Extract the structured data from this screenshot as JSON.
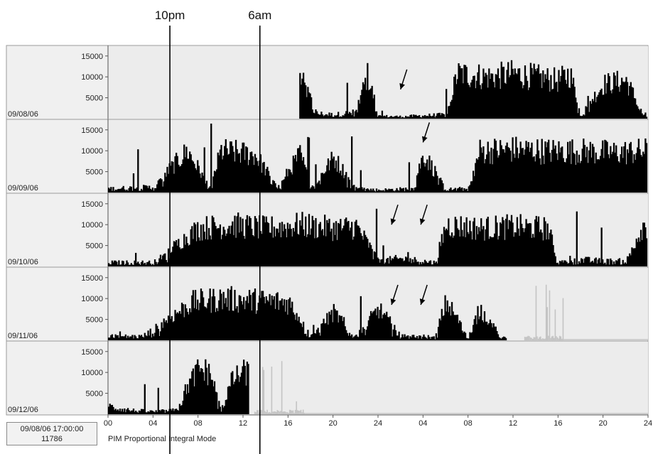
{
  "markers": [
    {
      "label": "10pm",
      "hour": 5.5
    },
    {
      "label": "6am",
      "hour": 13.5
    }
  ],
  "status_box": {
    "timestamp": "09/08/06 17:00:00",
    "value": "11786"
  },
  "mode_label": "PIM  Proportional Integral Mode",
  "chart_data": {
    "type": "bar",
    "title": "",
    "xlabel": "",
    "ylabel": "",
    "x_tick_labels": [
      "00",
      "04",
      "08",
      "12",
      "16",
      "20",
      "24",
      "04",
      "08",
      "12",
      "16",
      "20",
      "24"
    ],
    "x_range_hours": [
      0,
      48
    ],
    "ylim": [
      0,
      17000
    ],
    "y_tick_labels": [
      "15000",
      "10000",
      "5000"
    ],
    "colors": {
      "activity": "#000000",
      "off_wrist": "#c4c4c4",
      "background": "#ececec"
    },
    "panels": [
      {
        "date": "09/08/06",
        "activity": [
          [
            17,
            12000
          ],
          [
            18.5,
            2000
          ],
          [
            20,
            1500
          ],
          [
            22,
            2500
          ],
          [
            23,
            12500
          ],
          [
            24,
            1000
          ],
          [
            26,
            800
          ],
          [
            28,
            1200
          ],
          [
            30,
            1500
          ],
          [
            31,
            13000
          ],
          [
            34,
            12000
          ],
          [
            36,
            13000
          ],
          [
            38,
            12000
          ],
          [
            40,
            11000
          ],
          [
            41,
            13000
          ],
          [
            42,
            1500
          ],
          [
            44,
            10000
          ],
          [
            46,
            11000
          ],
          [
            47.5,
            1500
          ]
        ],
        "off_wrist": [],
        "arrows": [
          {
            "hour": 26,
            "value": 7000
          }
        ]
      },
      {
        "date": "09/09/06",
        "activity": [
          [
            0,
            1500
          ],
          [
            4,
            2000
          ],
          [
            7,
            12000
          ],
          [
            9,
            1500
          ],
          [
            10,
            12000
          ],
          [
            13,
            11000
          ],
          [
            15,
            1500
          ],
          [
            17,
            11000
          ],
          [
            18,
            1500
          ],
          [
            20,
            10000
          ],
          [
            22,
            1500
          ],
          [
            24,
            1000
          ],
          [
            27,
            1500
          ],
          [
            28,
            11000
          ],
          [
            30,
            1200
          ],
          [
            32,
            1500
          ],
          [
            33,
            12000
          ],
          [
            36,
            12500
          ],
          [
            39,
            12000
          ],
          [
            42,
            12000
          ],
          [
            45,
            11500
          ],
          [
            47.5,
            12000
          ]
        ],
        "off_wrist": [],
        "arrows": [
          {
            "hour": 28,
            "value": 12000
          }
        ]
      },
      {
        "date": "09/10/06",
        "activity": [
          [
            0,
            1500
          ],
          [
            4,
            1500
          ],
          [
            8,
            11000
          ],
          [
            11,
            12000
          ],
          [
            14,
            11000
          ],
          [
            17,
            12000
          ],
          [
            20,
            11000
          ],
          [
            22,
            11500
          ],
          [
            24,
            2000
          ],
          [
            26,
            3000
          ],
          [
            27,
            2500
          ],
          [
            29,
            1500
          ],
          [
            30,
            12000
          ],
          [
            33,
            11000
          ],
          [
            36,
            11500
          ],
          [
            39,
            11000
          ],
          [
            40,
            1500
          ],
          [
            42,
            2500
          ],
          [
            44,
            2000
          ],
          [
            46,
            2000
          ],
          [
            47.5,
            12000
          ]
        ],
        "off_wrist": [],
        "arrows": [
          {
            "hour": 25.2,
            "value": 10000
          },
          {
            "hour": 27.8,
            "value": 10000
          }
        ]
      },
      {
        "date": "09/11/06",
        "activity": [
          [
            0,
            1500
          ],
          [
            3,
            1500
          ],
          [
            7.5,
            11000
          ],
          [
            10,
            12000
          ],
          [
            13,
            11500
          ],
          [
            16,
            11000
          ],
          [
            18,
            1500
          ],
          [
            20,
            8000
          ],
          [
            22,
            1500
          ],
          [
            24,
            9000
          ],
          [
            26,
            1500
          ],
          [
            28,
            1500
          ],
          [
            29,
            1000
          ],
          [
            30,
            11000
          ],
          [
            32,
            1500
          ],
          [
            33,
            9000
          ],
          [
            35,
            1000
          ]
        ],
        "off_wrist": [
          [
            37,
            15000
          ],
          [
            39,
            14000
          ],
          [
            40,
            13000
          ]
        ],
        "arrows": [
          {
            "hour": 25.2,
            "value": 8500
          },
          {
            "hour": 27.8,
            "value": 8500
          }
        ]
      },
      {
        "date": "09/12/06",
        "activity": [
          [
            0,
            3000
          ],
          [
            2,
            1500
          ],
          [
            4,
            1000
          ],
          [
            6,
            1500
          ],
          [
            7,
            8000
          ],
          [
            8,
            13000
          ],
          [
            9,
            12000
          ],
          [
            10,
            1500
          ],
          [
            11,
            10000
          ],
          [
            12,
            12000
          ]
        ],
        "off_wrist": [
          [
            13,
            15000
          ],
          [
            14,
            14000
          ],
          [
            15,
            13000
          ],
          [
            16,
            13000
          ],
          [
            17,
            500
          ]
        ],
        "arrows": []
      }
    ]
  }
}
